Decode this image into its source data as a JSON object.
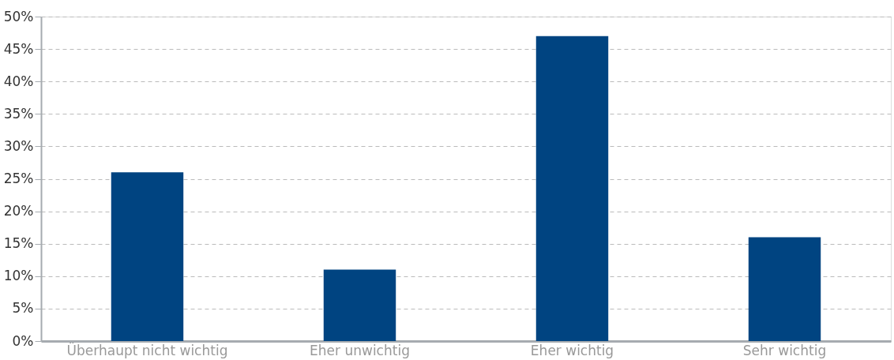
{
  "chart_data": {
    "type": "bar",
    "categories": [
      "Überhaupt nicht wichtig",
      "Eher unwichtig",
      "Eher wichtig",
      "Sehr wichtig"
    ],
    "values": [
      26,
      11,
      47,
      16
    ],
    "color": "#004481",
    "ylim": [
      0,
      50
    ],
    "yticks": [
      {
        "value": 0,
        "label": "0%"
      },
      {
        "value": 5,
        "label": "5%"
      },
      {
        "value": 10,
        "label": "10%"
      },
      {
        "value": 15,
        "label": "15%"
      },
      {
        "value": 20,
        "label": "20%"
      },
      {
        "value": 25,
        "label": "25%"
      },
      {
        "value": 30,
        "label": "30%"
      },
      {
        "value": 35,
        "label": "35%"
      },
      {
        "value": 40,
        "label": "40%"
      },
      {
        "value": 45,
        "label": "45%"
      },
      {
        "value": 50,
        "label": "50%"
      }
    ],
    "grid": "y"
  }
}
